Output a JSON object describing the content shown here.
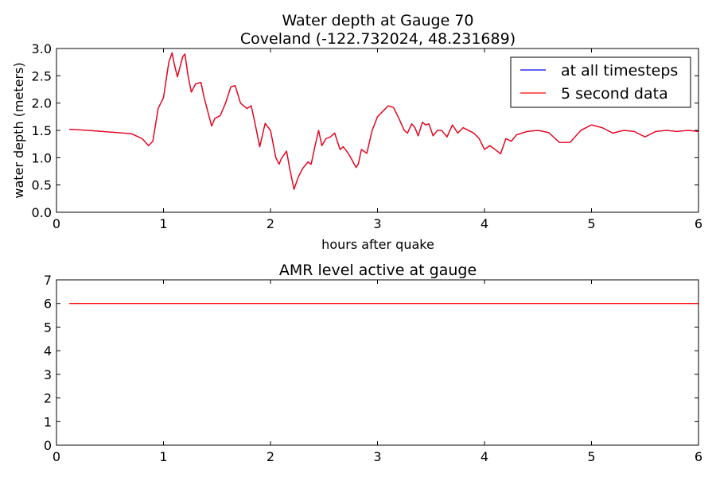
{
  "chart_data": [
    {
      "type": "line",
      "title": "Water depth at Gauge 70",
      "subtitle": "Coveland  (-122.732024, 48.231689)",
      "xlabel": "hours after quake",
      "ylabel": "water depth (meters)",
      "xlim": [
        0,
        6
      ],
      "ylim": [
        0,
        3
      ],
      "xticks": [
        0,
        1,
        2,
        3,
        4,
        5,
        6
      ],
      "yticks": [
        "0.0",
        "0.5",
        "1.0",
        "1.5",
        "2.0",
        "2.5",
        "3.0"
      ],
      "grid": false,
      "legend_position": "top-right",
      "series": [
        {
          "name": "at all timesteps",
          "color": "#0000ff",
          "x": [
            0.12,
            0.3,
            0.5,
            0.7,
            0.8,
            0.86,
            0.9,
            0.95,
            1.0,
            1.05,
            1.08,
            1.1,
            1.13,
            1.18,
            1.2,
            1.23,
            1.26,
            1.3,
            1.35,
            1.38,
            1.45,
            1.48,
            1.53,
            1.58,
            1.63,
            1.67,
            1.72,
            1.78,
            1.82,
            1.85,
            1.9,
            1.95,
            2.0,
            2.05,
            2.08,
            2.1,
            2.15,
            2.18,
            2.22,
            2.26,
            2.3,
            2.35,
            2.38,
            2.42,
            2.45,
            2.48,
            2.52,
            2.56,
            2.6,
            2.65,
            2.68,
            2.72,
            2.75,
            2.8,
            2.82,
            2.85,
            2.9,
            2.95,
            3.0,
            3.05,
            3.1,
            3.15,
            3.2,
            3.25,
            3.28,
            3.32,
            3.35,
            3.38,
            3.42,
            3.45,
            3.48,
            3.52,
            3.56,
            3.6,
            3.65,
            3.7,
            3.75,
            3.8,
            3.85,
            3.9,
            3.95,
            4.0,
            4.05,
            4.1,
            4.15,
            4.2,
            4.25,
            4.3,
            4.35,
            4.4,
            4.5,
            4.6,
            4.7,
            4.8,
            4.9,
            5.0,
            5.1,
            5.2,
            5.3,
            5.4,
            5.5,
            5.6,
            5.7,
            5.8,
            5.9,
            6.0
          ],
          "y": [
            1.52,
            1.5,
            1.47,
            1.44,
            1.35,
            1.22,
            1.3,
            1.9,
            2.1,
            2.75,
            2.92,
            2.72,
            2.48,
            2.85,
            2.9,
            2.5,
            2.2,
            2.35,
            2.38,
            2.1,
            1.58,
            1.72,
            1.77,
            2.0,
            2.3,
            2.32,
            2.0,
            1.9,
            1.95,
            1.68,
            1.2,
            1.63,
            1.5,
            1.0,
            0.88,
            0.98,
            1.12,
            0.8,
            0.42,
            0.65,
            0.8,
            0.92,
            0.88,
            1.25,
            1.5,
            1.22,
            1.35,
            1.38,
            1.45,
            1.15,
            1.2,
            1.1,
            1.0,
            0.82,
            0.88,
            1.15,
            1.08,
            1.5,
            1.75,
            1.85,
            1.95,
            1.92,
            1.72,
            1.5,
            1.45,
            1.62,
            1.55,
            1.4,
            1.65,
            1.6,
            1.62,
            1.4,
            1.5,
            1.5,
            1.38,
            1.6,
            1.45,
            1.55,
            1.5,
            1.45,
            1.35,
            1.15,
            1.22,
            1.15,
            1.07,
            1.35,
            1.3,
            1.42,
            1.45,
            1.48,
            1.5,
            1.46,
            1.28,
            1.28,
            1.5,
            1.6,
            1.55,
            1.45,
            1.5,
            1.48,
            1.38,
            1.48,
            1.5,
            1.48,
            1.5,
            1.48
          ]
        },
        {
          "name": "5 second data",
          "color": "#ff0000",
          "x": [
            0.12,
            0.3,
            0.5,
            0.7,
            0.8,
            0.86,
            0.9,
            0.95,
            1.0,
            1.05,
            1.08,
            1.1,
            1.13,
            1.18,
            1.2,
            1.23,
            1.26,
            1.3,
            1.35,
            1.38,
            1.45,
            1.48,
            1.53,
            1.58,
            1.63,
            1.67,
            1.72,
            1.78,
            1.82,
            1.85,
            1.9,
            1.95,
            2.0,
            2.05,
            2.08,
            2.1,
            2.15,
            2.18,
            2.22,
            2.26,
            2.3,
            2.35,
            2.38,
            2.42,
            2.45,
            2.48,
            2.52,
            2.56,
            2.6,
            2.65,
            2.68,
            2.72,
            2.75,
            2.8,
            2.82,
            2.85,
            2.9,
            2.95,
            3.0,
            3.05,
            3.1,
            3.15,
            3.2,
            3.25,
            3.28,
            3.32,
            3.35,
            3.38,
            3.42,
            3.45,
            3.48,
            3.52,
            3.56,
            3.6,
            3.65,
            3.7,
            3.75,
            3.8,
            3.85,
            3.9,
            3.95,
            4.0,
            4.05,
            4.1,
            4.15,
            4.2,
            4.25,
            4.3,
            4.35,
            4.4,
            4.5,
            4.6,
            4.7,
            4.8,
            4.9,
            5.0,
            5.1,
            5.2,
            5.3,
            5.4,
            5.5,
            5.6,
            5.7,
            5.8,
            5.9,
            6.0
          ],
          "y": [
            1.52,
            1.5,
            1.47,
            1.44,
            1.35,
            1.22,
            1.3,
            1.9,
            2.1,
            2.75,
            2.92,
            2.72,
            2.48,
            2.85,
            2.9,
            2.5,
            2.2,
            2.35,
            2.38,
            2.1,
            1.58,
            1.72,
            1.77,
            2.0,
            2.3,
            2.32,
            2.0,
            1.9,
            1.95,
            1.68,
            1.2,
            1.63,
            1.5,
            1.0,
            0.88,
            0.98,
            1.12,
            0.8,
            0.42,
            0.65,
            0.8,
            0.92,
            0.88,
            1.25,
            1.5,
            1.22,
            1.35,
            1.38,
            1.45,
            1.15,
            1.2,
            1.1,
            1.0,
            0.82,
            0.88,
            1.15,
            1.08,
            1.5,
            1.75,
            1.85,
            1.95,
            1.92,
            1.72,
            1.5,
            1.45,
            1.62,
            1.55,
            1.4,
            1.65,
            1.6,
            1.62,
            1.4,
            1.5,
            1.5,
            1.38,
            1.6,
            1.45,
            1.55,
            1.5,
            1.45,
            1.35,
            1.15,
            1.22,
            1.15,
            1.07,
            1.35,
            1.3,
            1.42,
            1.45,
            1.48,
            1.5,
            1.46,
            1.28,
            1.28,
            1.5,
            1.6,
            1.55,
            1.45,
            1.5,
            1.48,
            1.38,
            1.48,
            1.5,
            1.48,
            1.5,
            1.48
          ]
        }
      ]
    },
    {
      "type": "line",
      "title": "AMR level active at gauge",
      "xlabel": "",
      "ylabel": "",
      "xlim": [
        0,
        6
      ],
      "ylim": [
        0,
        7
      ],
      "xticks": [
        0,
        1,
        2,
        3,
        4,
        5,
        6
      ],
      "yticks": [
        "0",
        "1",
        "2",
        "3",
        "4",
        "5",
        "6",
        "7"
      ],
      "grid": false,
      "series": [
        {
          "color": "#ff0000",
          "x": [
            0.12,
            6.0
          ],
          "y": [
            6,
            6
          ]
        }
      ]
    }
  ]
}
